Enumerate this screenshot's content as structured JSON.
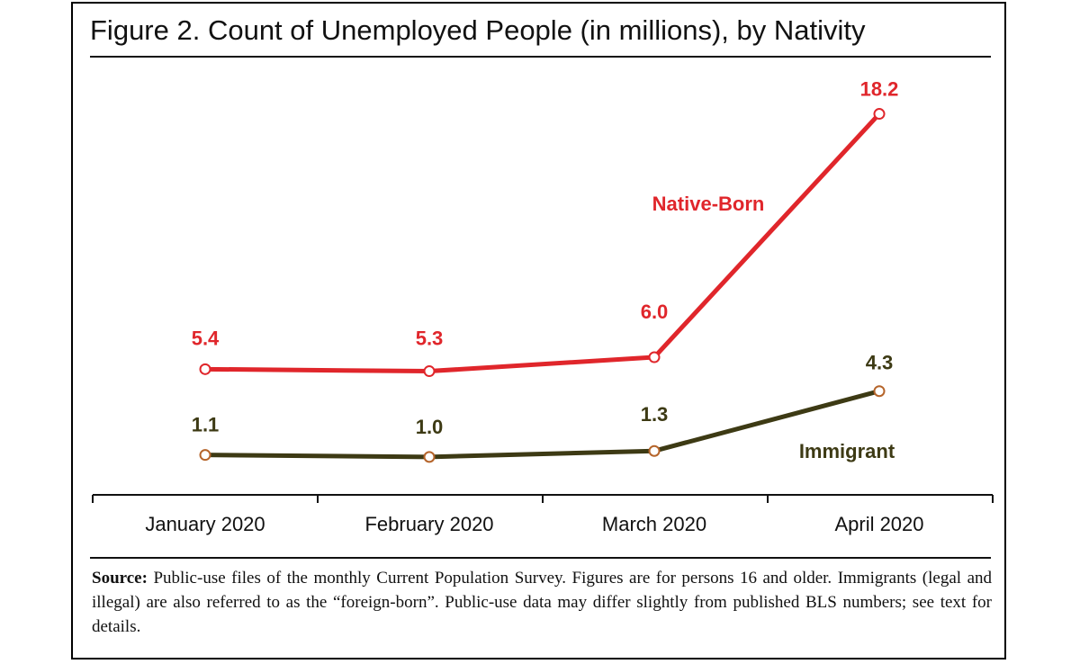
{
  "title": "Figure 2. Count of Unemployed People (in millions), by Nativity",
  "source": {
    "label": "Source:",
    "text": "Public-use files of the monthly Current Population Survey.  Figures are for persons 16 and older. Immigrants (legal and illegal) are also referred to as the “foreign-born”. Public-use data may differ slightly from published BLS numbers; see text for details."
  },
  "colors": {
    "native": "#e0262b",
    "immigrant": "#3d3a14",
    "immigrant_marker": "#b5642a"
  },
  "chart_data": {
    "type": "line",
    "title": "Figure 2. Count of Unemployed People (in millions), by Nativity",
    "xlabel": "",
    "ylabel": "",
    "categories": [
      "January 2020",
      "February 2020",
      "March 2020",
      "April 2020"
    ],
    "series": [
      {
        "name": "Native-Born",
        "values": [
          5.4,
          5.3,
          6.0,
          18.2
        ],
        "labels": [
          "5.4",
          "5.3",
          "6.0",
          "18.2"
        ]
      },
      {
        "name": "Immigrant",
        "values": [
          1.1,
          1.0,
          1.3,
          4.3
        ],
        "labels": [
          "1.1",
          "1.0",
          "1.3",
          "4.3"
        ]
      }
    ],
    "ylim": [
      -0.9,
      20.3
    ],
    "grid": false,
    "legend": "inline labels"
  }
}
